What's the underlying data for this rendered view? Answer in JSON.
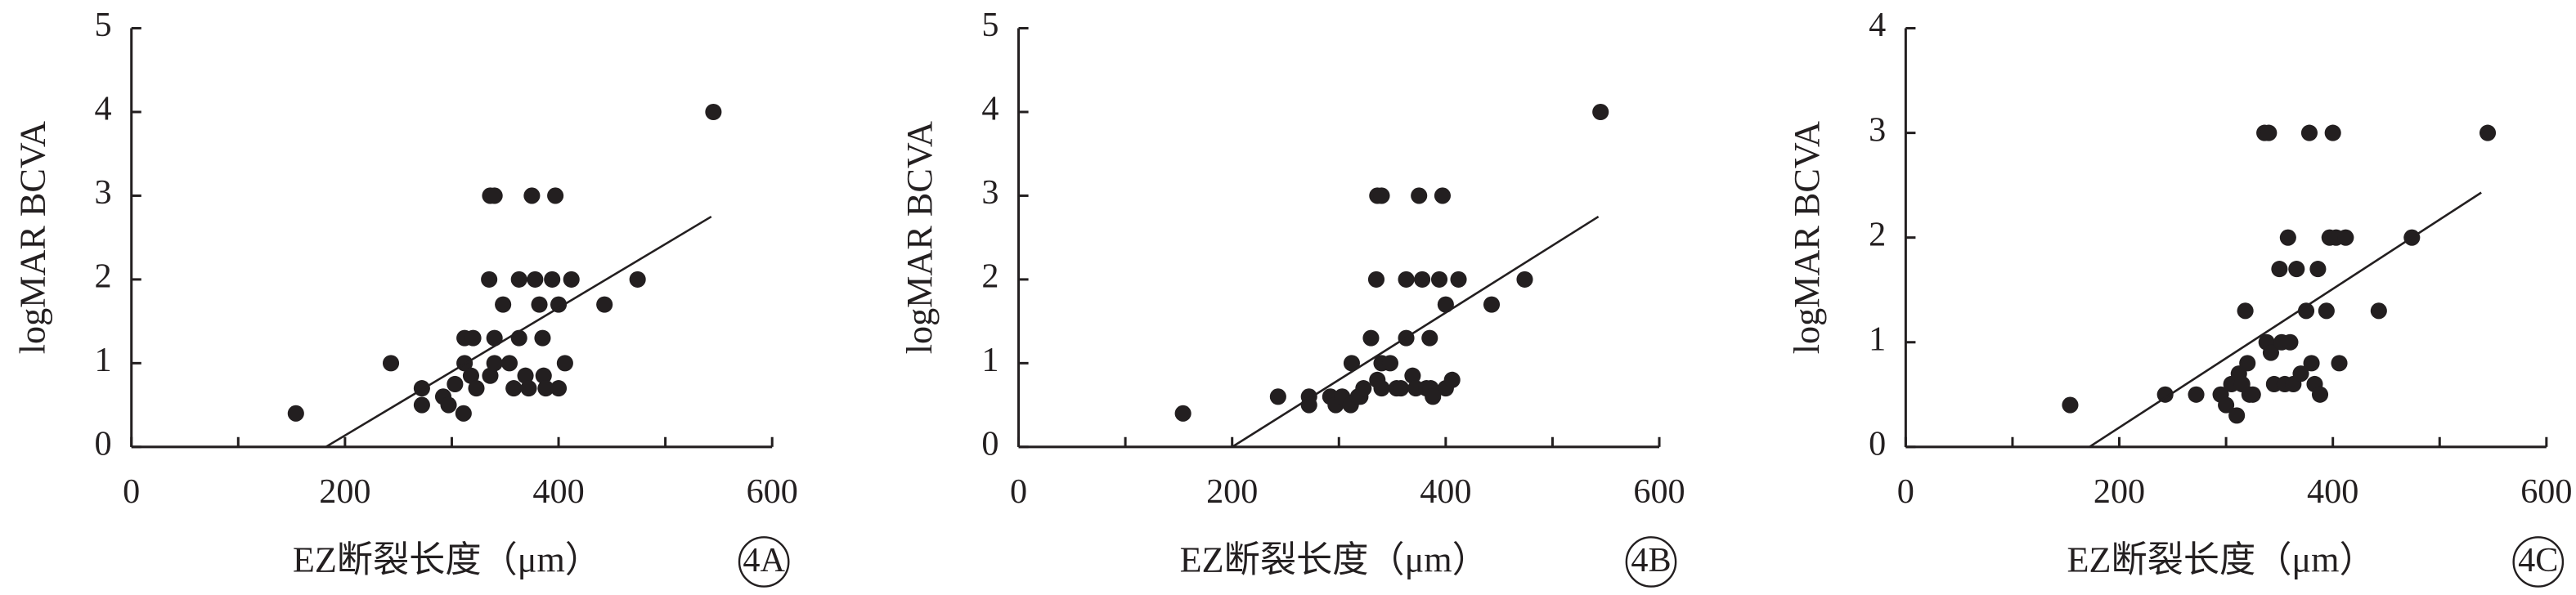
{
  "chart_data": [
    {
      "type": "scatter",
      "panel_label": "4A",
      "xlabel": "EZ断裂长度（μm）",
      "ylabel": "logMAR BCVA",
      "x": [
        154,
        243,
        272,
        272,
        292,
        297,
        303,
        311,
        312,
        312,
        320,
        318,
        323,
        336,
        340,
        336,
        340,
        340,
        335,
        348,
        354,
        358,
        363,
        363,
        369,
        372,
        375,
        378,
        382,
        385,
        386,
        388,
        394,
        397,
        400,
        400,
        406,
        412,
        443,
        474,
        545
      ],
      "y": [
        0.4,
        1.0,
        0.7,
        0.5,
        0.6,
        0.5,
        0.75,
        0.4,
        1.0,
        1.3,
        1.3,
        0.85,
        0.7,
        3.0,
        3.0,
        0.85,
        1.0,
        1.3,
        2.0,
        1.7,
        1.0,
        0.7,
        2.0,
        1.3,
        0.85,
        0.7,
        3.0,
        2.0,
        1.7,
        1.3,
        0.85,
        0.7,
        2.0,
        3.0,
        1.7,
        0.7,
        1.0,
        2.0,
        1.7,
        2.0,
        4.0
      ],
      "color": "#231f20",
      "trendline": {
        "x": [
          182,
          543
        ],
        "y": [
          0,
          2.75
        ]
      },
      "xlim": [
        0,
        600
      ],
      "ylim": [
        0,
        5
      ],
      "xticks": [
        0,
        200,
        400,
        600
      ],
      "xminorticks": [
        100,
        300,
        500
      ],
      "yticks": [
        0,
        1,
        2,
        3,
        4,
        5
      ]
    },
    {
      "type": "scatter",
      "panel_label": "4B",
      "xlabel": "EZ断裂长度（μm）",
      "ylabel": "logMAR BCVA",
      "x": [
        154,
        243,
        272,
        272,
        292,
        297,
        303,
        311,
        312,
        318,
        320,
        323,
        330,
        336,
        340,
        336,
        340,
        340,
        335,
        348,
        354,
        358,
        363,
        363,
        369,
        372,
        375,
        378,
        382,
        385,
        386,
        388,
        394,
        397,
        400,
        400,
        406,
        412,
        443,
        474,
        545
      ],
      "y": [
        0.4,
        0.6,
        0.6,
        0.5,
        0.6,
        0.5,
        0.6,
        0.5,
        1.0,
        0.6,
        0.6,
        0.7,
        1.3,
        3.0,
        3.0,
        0.8,
        1.0,
        0.7,
        2.0,
        1.0,
        0.7,
        0.7,
        2.0,
        1.3,
        0.85,
        0.7,
        3.0,
        2.0,
        0.7,
        1.3,
        0.7,
        0.6,
        2.0,
        3.0,
        1.7,
        0.7,
        0.8,
        2.0,
        1.7,
        2.0,
        4.0
      ],
      "color": "#231f20",
      "trendline": {
        "x": [
          200,
          543
        ],
        "y": [
          0,
          2.75
        ]
      },
      "xlim": [
        0,
        600
      ],
      "ylim": [
        0,
        5
      ],
      "xticks": [
        0,
        200,
        400,
        600
      ],
      "xminorticks": [
        100,
        300,
        500
      ],
      "yticks": [
        0,
        1,
        2,
        3,
        4,
        5
      ]
    },
    {
      "type": "scatter",
      "panel_label": "4C",
      "xlabel": "EZ断裂长度（μm）",
      "ylabel": "logMAR BCVA",
      "x": [
        154,
        243,
        272,
        295,
        300,
        305,
        310,
        312,
        315,
        318,
        320,
        322,
        325,
        336,
        340,
        338,
        342,
        345,
        350,
        352,
        355,
        358,
        360,
        363,
        366,
        370,
        375,
        378,
        380,
        383,
        386,
        388,
        394,
        397,
        400,
        403,
        406,
        412,
        443,
        474,
        545
      ],
      "y": [
        0.4,
        0.5,
        0.5,
        0.5,
        0.4,
        0.6,
        0.3,
        0.7,
        0.6,
        1.3,
        0.8,
        0.5,
        0.5,
        3.0,
        3.0,
        1.0,
        0.9,
        0.6,
        1.7,
        1.0,
        0.6,
        2.0,
        1.0,
        0.6,
        1.7,
        0.7,
        1.3,
        3.0,
        0.8,
        0.6,
        1.7,
        0.5,
        1.3,
        2.0,
        3.0,
        2.0,
        0.8,
        2.0,
        1.3,
        2.0,
        3.0
      ],
      "color": "#231f20",
      "trendline": {
        "x": [
          172,
          539
        ],
        "y": [
          0,
          2.43
        ]
      },
      "xlim": [
        0,
        600
      ],
      "ylim": [
        0,
        4
      ],
      "xticks": [
        0,
        200,
        400,
        600
      ],
      "xminorticks": [
        100,
        300,
        500
      ],
      "yticks": [
        0,
        1,
        2,
        3,
        4
      ]
    }
  ]
}
